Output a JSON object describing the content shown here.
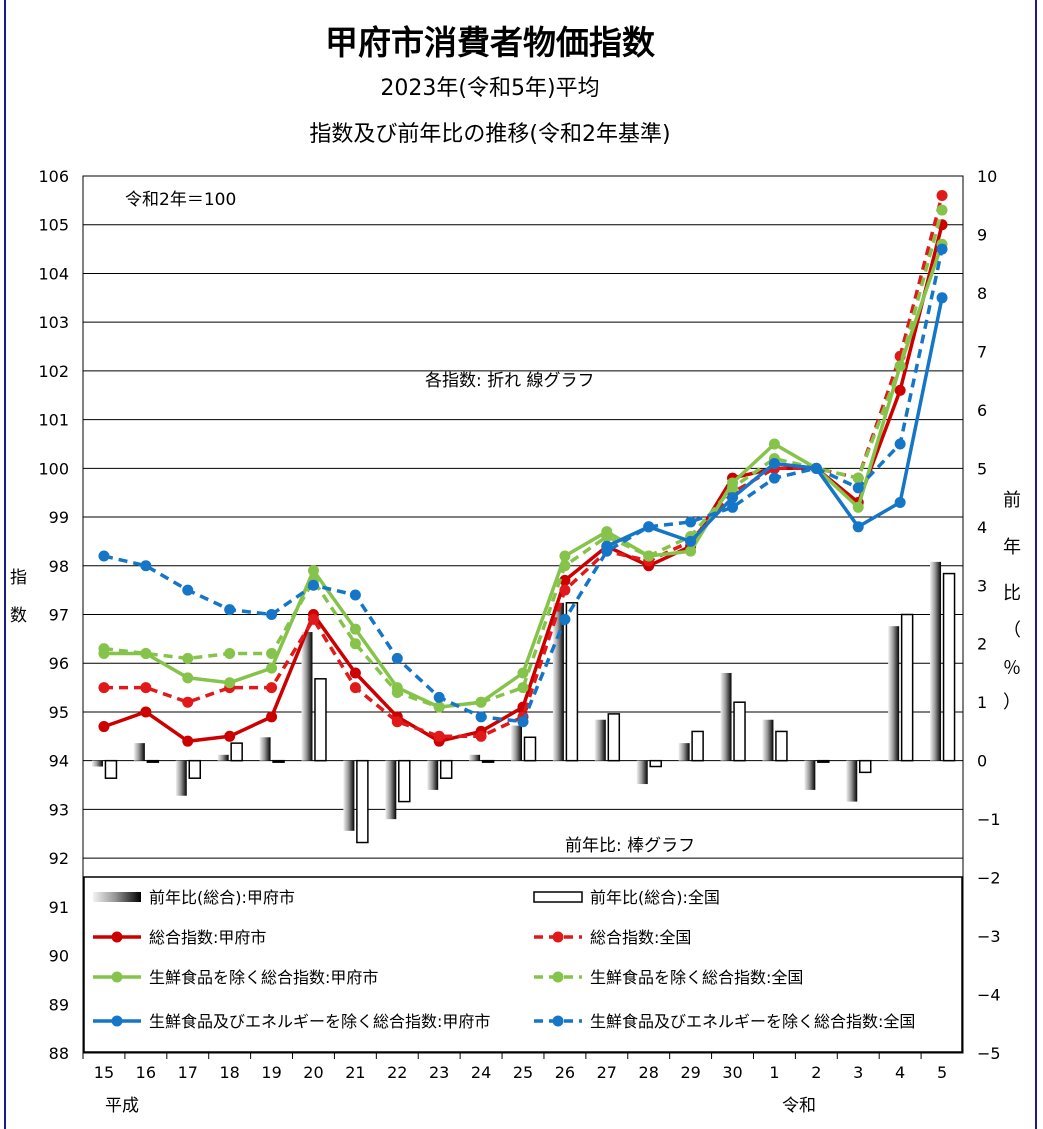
{
  "title": "甲府市消費者物価指数",
  "subtitle1": "2023年(令和5年)平均",
  "subtitle2": "指数及び前年比の推移(令和2年基準)",
  "base_note": "令和2年＝100",
  "line_note": "各指数: 折れ 線グラフ",
  "bar_note": "前年比: 棒グラフ",
  "era_heisei": "平成",
  "era_reiwa": "令和",
  "left_axis_label": [
    "指",
    "数"
  ],
  "right_axis_label": [
    "前",
    "年",
    "比",
    "（",
    "％",
    "）"
  ],
  "colors": {
    "red": "#cc0000",
    "red_light": "#e0191b",
    "green": "#86c34b",
    "blue": "#1576c8",
    "frame": "#1a1a8c"
  },
  "chart_data": {
    "type": "bar+line",
    "categories": [
      "15",
      "16",
      "17",
      "18",
      "19",
      "20",
      "21",
      "22",
      "23",
      "24",
      "25",
      "26",
      "27",
      "28",
      "29",
      "30",
      "1",
      "2",
      "3",
      "4",
      "5"
    ],
    "y_left": {
      "min": 88,
      "max": 106,
      "ticks": [
        88,
        89,
        90,
        91,
        92,
        93,
        94,
        95,
        96,
        97,
        98,
        99,
        100,
        101,
        102,
        103,
        104,
        105,
        106
      ]
    },
    "y_right": {
      "min": -5,
      "max": 10,
      "ticks": [
        -5,
        -4,
        -3,
        -2,
        -1,
        0,
        1,
        2,
        3,
        4,
        5,
        6,
        7,
        8,
        9,
        10
      ]
    },
    "bar_series": [
      {
        "name": "前年比(総合):甲府市",
        "axis": "right",
        "style": "gradient",
        "values": [
          -0.1,
          0.3,
          -0.6,
          0.1,
          0.4,
          2.2,
          -1.2,
          -1.0,
          -0.5,
          0.1,
          0.6,
          2.7,
          0.7,
          -0.4,
          0.3,
          1.5,
          0.7,
          -0.5,
          -0.7,
          2.3,
          3.4
        ]
      },
      {
        "name": "前年比(総合):全国",
        "axis": "right",
        "style": "outline",
        "values": [
          -0.3,
          0.0,
          -0.3,
          0.3,
          0.0,
          1.4,
          -1.4,
          -0.7,
          -0.3,
          0.0,
          0.4,
          2.7,
          0.8,
          -0.1,
          0.5,
          1.0,
          0.5,
          0.0,
          -0.2,
          2.5,
          3.2
        ]
      }
    ],
    "line_series": [
      {
        "name": "総合指数:甲府市",
        "axis": "left",
        "color": "#cc0000",
        "dashed": false,
        "values": [
          94.7,
          95.0,
          94.4,
          94.5,
          94.9,
          97.0,
          95.8,
          94.9,
          94.4,
          94.6,
          95.1,
          97.7,
          98.4,
          98.0,
          98.4,
          99.8,
          100.0,
          100.0,
          99.3,
          101.6,
          105.0
        ]
      },
      {
        "name": "総合指数:全国",
        "axis": "left",
        "color": "#e0191b",
        "dashed": true,
        "values": [
          95.5,
          95.5,
          95.2,
          95.5,
          95.5,
          96.9,
          95.5,
          94.8,
          94.5,
          94.5,
          94.9,
          97.5,
          98.3,
          98.1,
          98.5,
          99.5,
          100.0,
          100.0,
          99.8,
          102.3,
          105.6
        ]
      },
      {
        "name": "生鮮食品を除く総合指数:甲府市",
        "axis": "left",
        "color": "#86c34b",
        "dashed": false,
        "values": [
          96.2,
          96.2,
          95.7,
          95.6,
          95.9,
          97.9,
          96.7,
          95.5,
          95.1,
          95.2,
          95.8,
          98.2,
          98.7,
          98.2,
          98.3,
          99.7,
          100.5,
          100.0,
          99.2,
          102.1,
          104.6
        ]
      },
      {
        "name": "生鮮食品を除く総合指数:全国",
        "axis": "left",
        "color": "#86c34b",
        "dashed": true,
        "values": [
          96.3,
          96.2,
          96.1,
          96.2,
          96.2,
          97.7,
          96.4,
          95.4,
          95.1,
          95.2,
          95.5,
          98.0,
          98.6,
          98.2,
          98.6,
          99.6,
          100.2,
          100.0,
          99.8,
          102.1,
          105.3
        ]
      },
      {
        "name": "生鮮食品及びエネルギーを除く総合指数:甲府市",
        "axis": "left",
        "color": "#1576c8",
        "dashed": false,
        "values": [
          null,
          null,
          null,
          null,
          null,
          null,
          null,
          null,
          null,
          null,
          null,
          null,
          98.4,
          98.8,
          98.5,
          99.4,
          100.1,
          100.0,
          98.8,
          99.3,
          103.5
        ]
      },
      {
        "name": "生鮮食品及びエネルギーを除く総合指数:全国",
        "axis": "left",
        "color": "#1576c8",
        "dashed": true,
        "values": [
          98.2,
          98.0,
          97.5,
          97.1,
          97.0,
          97.6,
          97.4,
          96.1,
          95.3,
          94.9,
          94.8,
          96.9,
          98.3,
          98.8,
          98.9,
          99.2,
          99.8,
          100.0,
          99.6,
          100.5,
          104.5
        ]
      }
    ],
    "legend_placement": "bottom-inside"
  }
}
